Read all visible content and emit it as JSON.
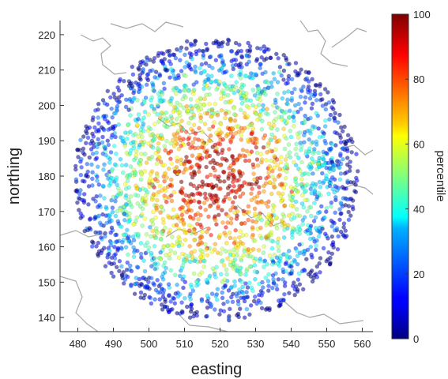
{
  "chart_data": {
    "type": "scatter",
    "title": "",
    "xlabel": "easting",
    "ylabel": "northing",
    "xlim": [
      475,
      563
    ],
    "ylim": [
      136,
      224
    ],
    "xticks": [
      "480",
      "490",
      "500",
      "510",
      "520",
      "530",
      "540",
      "550",
      "560"
    ],
    "yticks": [
      "140",
      "150",
      "160",
      "170",
      "180",
      "190",
      "200",
      "210",
      "220"
    ],
    "colorbar": {
      "label": "percentile",
      "range": [
        0,
        100
      ],
      "ticks": [
        "0",
        "20",
        "40",
        "60",
        "80",
        "100"
      ],
      "colormap": "jet"
    },
    "center": [
      519,
      179
    ],
    "radius_km": 40,
    "series": [
      {
        "description": "points within 40 km of centre; percentile decreases with distance from centre",
        "marker": "circle",
        "opacity": 0.55
      }
    ],
    "background": "grey administrative boundary lines",
    "grid": false
  },
  "colors": {
    "boundary": "#a8a8a8",
    "axis": "#333333",
    "cb_low": "#00007f",
    "cb_high": "#7f0000"
  }
}
